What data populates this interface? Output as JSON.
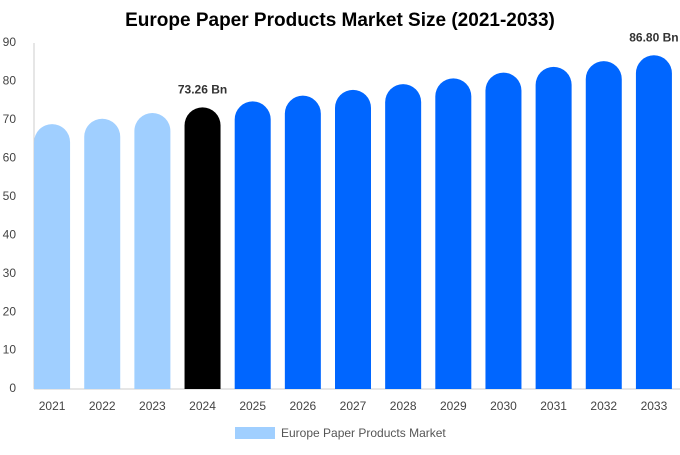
{
  "chart_data": {
    "type": "bar",
    "title": "Europe Paper Products Market Size (2021-2033)",
    "categories": [
      "2021",
      "2022",
      "2023",
      "2024",
      "2025",
      "2026",
      "2027",
      "2028",
      "2029",
      "2030",
      "2031",
      "2032",
      "2033"
    ],
    "series": [
      {
        "name": "Europe Paper Products Market",
        "color": "#a0cfff",
        "values": [
          68.9,
          70.3,
          71.8,
          73.26,
          74.8,
          76.3,
          77.8,
          79.3,
          80.8,
          82.3,
          83.8,
          85.3,
          86.8
        ],
        "value_labels": [
          null,
          null,
          null,
          "73.26 Bn",
          null,
          null,
          null,
          null,
          null,
          null,
          null,
          null,
          "86.80 Bn"
        ],
        "colors": [
          "#a0cfff",
          "#a0cfff",
          "#a0cfff",
          "#000000",
          "#0066ff",
          "#0066ff",
          "#0066ff",
          "#0066ff",
          "#0066ff",
          "#0066ff",
          "#0066ff",
          "#0066ff",
          "#0066ff"
        ]
      }
    ],
    "ylim": [
      0,
      90
    ],
    "yticks": [
      0,
      10,
      20,
      30,
      40,
      50,
      60,
      70,
      80,
      90
    ],
    "grid": false
  }
}
